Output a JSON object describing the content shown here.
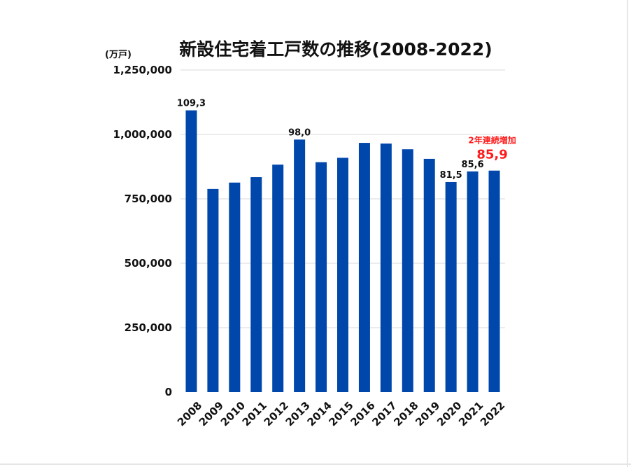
{
  "chart_data": {
    "type": "bar",
    "title": "新設住宅着工戸数の推移(2008-2022)",
    "unit_label": "(万戸)",
    "categories": [
      "2008",
      "2009",
      "2010",
      "2011",
      "2012",
      "2013",
      "2014",
      "2015",
      "2016",
      "2017",
      "2018",
      "2019",
      "2020",
      "2021",
      "2022"
    ],
    "values": [
      1093485,
      788410,
      813126,
      834117,
      882797,
      980025,
      892261,
      909299,
      967237,
      964641,
      942370,
      905123,
      815340,
      856484,
      859529
    ],
    "ylim": [
      0,
      1250000
    ],
    "yticks": [
      0,
      250000,
      500000,
      750000,
      1000000,
      1250000
    ],
    "ytick_labels": [
      "0",
      "250,000",
      "500,000",
      "750,000",
      "1,000,000",
      "1,250,000"
    ],
    "grid": true,
    "bar_color": "#0047AB",
    "data_labels": [
      {
        "category": "2008",
        "text": "109,3"
      },
      {
        "category": "2013",
        "text": "98,0"
      },
      {
        "category": "2020",
        "text": "81,5"
      },
      {
        "category": "2021",
        "text": "85,6"
      }
    ],
    "annotation": {
      "category": "2022",
      "line1": "2年連続増加",
      "line2": "85,9",
      "color": "#ff1a1a"
    }
  }
}
